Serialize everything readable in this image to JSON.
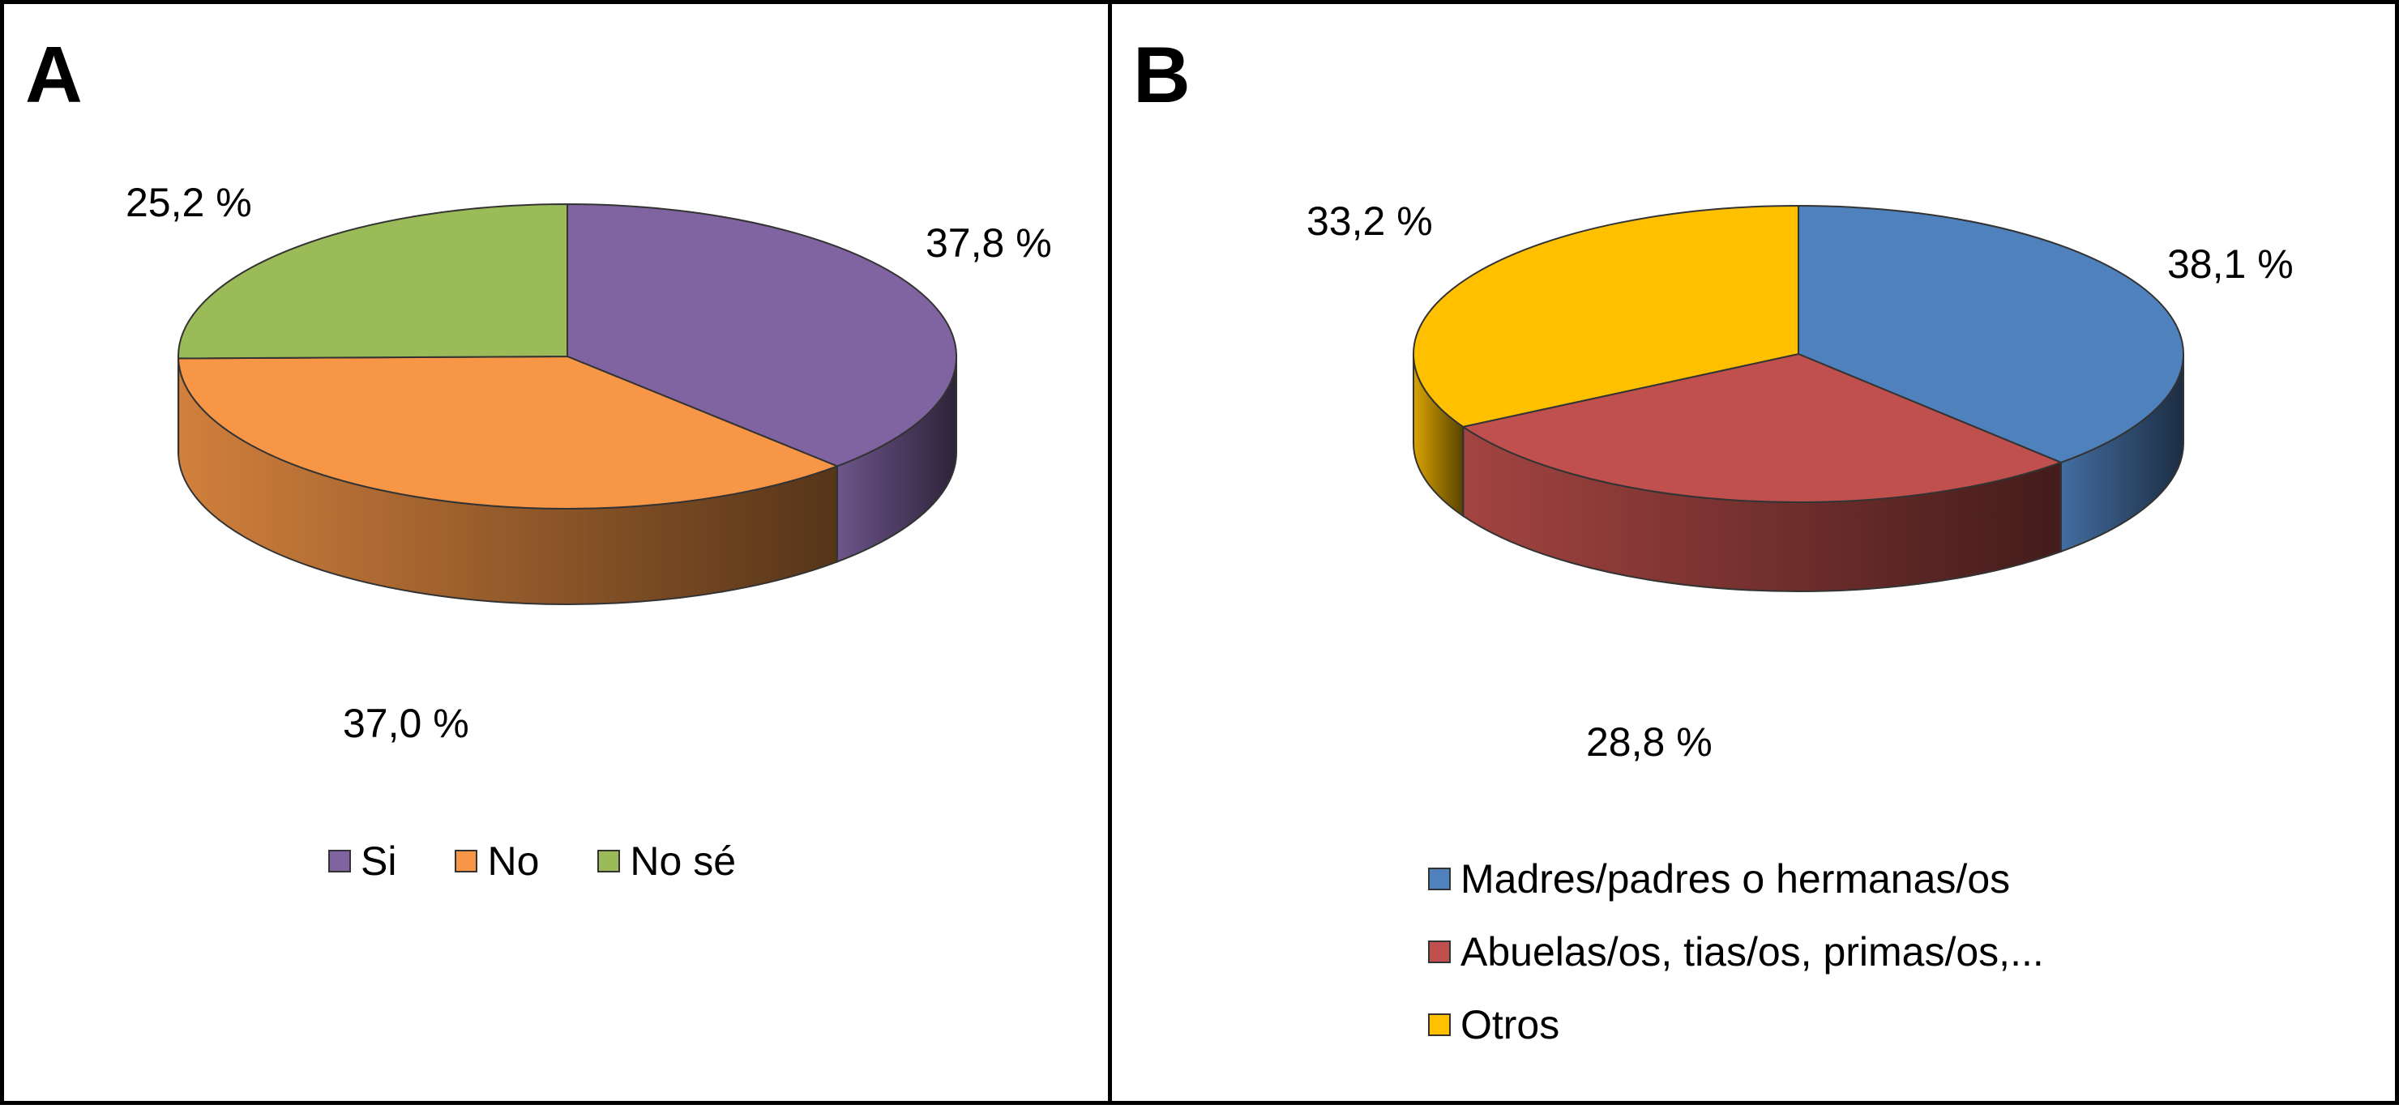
{
  "chart_data": [
    {
      "type": "pie",
      "panel_label": "A",
      "title": "",
      "legend_position": "bottom",
      "slices": [
        {
          "name": "Si",
          "value": 37.8,
          "label": "37,8 %",
          "color": "#8064a2"
        },
        {
          "name": "No",
          "value": 37.0,
          "label": "37,0 %",
          "color": "#f79646"
        },
        {
          "name": "No sé",
          "value": 25.2,
          "label": "25,2 %",
          "color": "#9bbb59"
        }
      ]
    },
    {
      "type": "pie",
      "panel_label": "B",
      "title": "",
      "legend_position": "bottom",
      "slices": [
        {
          "name": "Madres/padres o hermanas/os",
          "value": 38.1,
          "label": "38,1 %",
          "color": "#4f81bd"
        },
        {
          "name": "Abuelas/os, tias/os, primas/os,...",
          "value": 28.8,
          "label": "28,8 %",
          "color": "#c0504d"
        },
        {
          "name": "Otros",
          "value": 33.2,
          "label": "33,2 %",
          "color": "#ffc000"
        }
      ]
    }
  ]
}
